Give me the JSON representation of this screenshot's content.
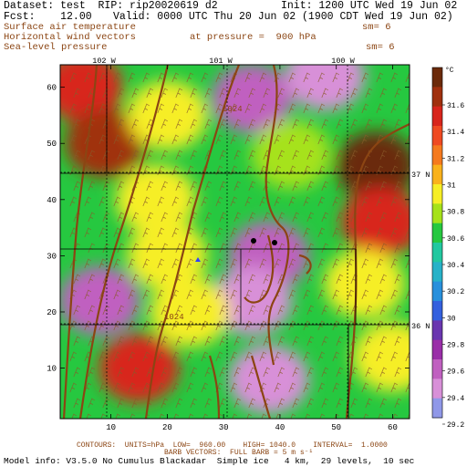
{
  "header": {
    "dataset": "Dataset: test  RIP: rip20020619 d2",
    "init": "Init: 1200 UTC Wed 19 Jun 02",
    "fcst": "Fcst:    12.00",
    "valid": "Valid: 0000 UTC Thu 20 Jun 02 (1900 CDT Wed 19 Jun 02)",
    "field1": "Surface air temperature",
    "field1_sm": "sm= 6",
    "field2": "Horizontal wind vectors",
    "pressure": "at pressure =  900 hPa",
    "field3": "Sea-level pressure",
    "field3_sm": "sm= 6"
  },
  "map": {
    "lon_labels": [
      "102 W",
      "101 W",
      "100 W"
    ],
    "lat_labels": [
      "37 N",
      "36 N"
    ],
    "contour_labels": [
      "1024",
      "1024"
    ],
    "colors": {
      "warm_dark": "#7a3a00",
      "red": "#e8302c",
      "orange": "#f48a1e",
      "yellow": "#f6ee26",
      "green": "#26c840",
      "cyan": "#27b2c8",
      "blue": "#3460de",
      "purple": "#7a2aa4",
      "contour": "#8b4513"
    }
  },
  "colorbar": {
    "unit": "°C",
    "labels": [
      "31.6",
      "31.4",
      "31.2",
      "31",
      "30.8",
      "30.6",
      "30.4",
      "30.2",
      "30",
      "29.8",
      "29.6",
      "29.4",
      "29.2"
    ],
    "colors": [
      "#6b2a0a",
      "#a0300e",
      "#d8251c",
      "#ef4a22",
      "#f57a1e",
      "#f9b21c",
      "#f6ee26",
      "#a6e21a",
      "#26c840",
      "#22c8a0",
      "#27b2c8",
      "#2890dc",
      "#3460de",
      "#6a36b0",
      "#9a2ea8",
      "#c060c0",
      "#d890d8",
      "#9098e8"
    ]
  },
  "footer": {
    "contours": "CONTOURS:  UNITS=hPa  LOW=  960.00    HIGH= 1040.0    INTERVAL=  1.0000",
    "barbs": "BARB VECTORS:  FULL BARB = 5 m s⁻¹",
    "model": "Model info: V3.5.0 No Cumulus Blackadar  Simple ice   4 km,  29 levels,  10 sec"
  },
  "chart_data": {
    "type": "heatmap",
    "title": "Surface air temperature",
    "x_ticks": [
      10,
      20,
      30,
      40,
      50,
      60
    ],
    "y_ticks": [
      10,
      20,
      30,
      40,
      50,
      60
    ],
    "xlim": [
      1,
      63
    ],
    "ylim": [
      1,
      64
    ],
    "color_scale": {
      "unit": "°C",
      "min": 29.1,
      "max": 31.7,
      "levels": [
        29.2,
        29.4,
        29.6,
        29.8,
        30.0,
        30.2,
        30.4,
        30.6,
        30.8,
        31.0,
        31.2,
        31.4,
        31.6
      ]
    },
    "regions": [
      {
        "x": 5,
        "y": 60,
        "value": 31.4
      },
      {
        "x": 9,
        "y": 50,
        "value": 31.5
      },
      {
        "x": 20,
        "y": 55,
        "value": 30.8
      },
      {
        "x": 35,
        "y": 58,
        "value": 29.4
      },
      {
        "x": 48,
        "y": 62,
        "value": 29.3
      },
      {
        "x": 42,
        "y": 48,
        "value": 30.6
      },
      {
        "x": 57,
        "y": 46,
        "value": 31.6
      },
      {
        "x": 58,
        "y": 36,
        "value": 31.3
      },
      {
        "x": 18,
        "y": 40,
        "value": 30.8
      },
      {
        "x": 20,
        "y": 30,
        "value": 30.8
      },
      {
        "x": 38,
        "y": 30,
        "value": 29.5
      },
      {
        "x": 35,
        "y": 22,
        "value": 29.3
      },
      {
        "x": 8,
        "y": 22,
        "value": 29.4
      },
      {
        "x": 24,
        "y": 20,
        "value": 30.8
      },
      {
        "x": 55,
        "y": 25,
        "value": 30.7
      },
      {
        "x": 15,
        "y": 10,
        "value": 31.4
      },
      {
        "x": 38,
        "y": 8,
        "value": 29.3
      },
      {
        "x": 60,
        "y": 12,
        "value": 30.7
      }
    ],
    "contour_labels": [
      {
        "value": 1024
      },
      {
        "value": 1024
      }
    ]
  }
}
